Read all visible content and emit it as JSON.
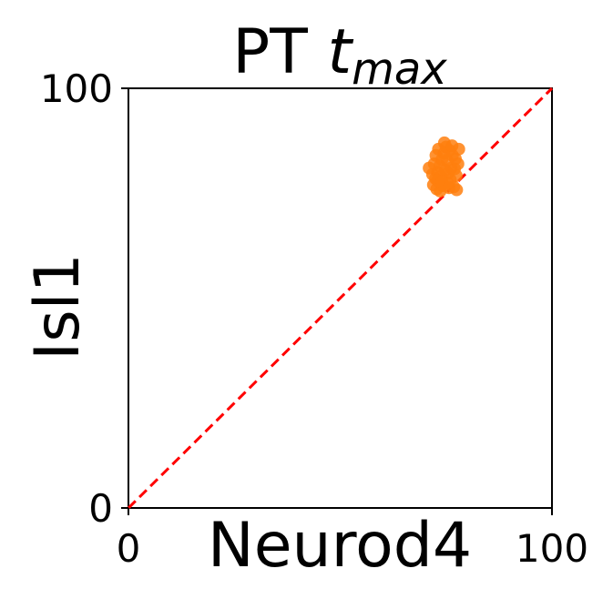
{
  "chart_data": {
    "type": "scatter",
    "title": "PT t_max",
    "title_parts": {
      "plain": "PT ",
      "math_base": "t",
      "math_sub": "max"
    },
    "xlabel": "Neurod4",
    "ylabel": "Isl1",
    "xlim": [
      0,
      100
    ],
    "ylim": [
      0,
      100
    ],
    "x_ticks": [
      "0",
      "100"
    ],
    "y_ticks": [
      "0",
      "100"
    ],
    "grid": false,
    "reference_line": {
      "style": "dashed",
      "color": "#ff0000",
      "from": [
        0,
        0
      ],
      "to": [
        100,
        100
      ]
    },
    "series": [
      {
        "color": "#ff7f0e",
        "points": [
          {
            "x": 72.0,
            "y": 77.0
          },
          {
            "x": 72.5,
            "y": 78.5
          },
          {
            "x": 73.0,
            "y": 80.0
          },
          {
            "x": 73.5,
            "y": 81.5
          },
          {
            "x": 74.0,
            "y": 83.0
          },
          {
            "x": 74.5,
            "y": 84.5
          },
          {
            "x": 75.0,
            "y": 86.0
          },
          {
            "x": 72.8,
            "y": 76.0
          },
          {
            "x": 73.6,
            "y": 75.5
          },
          {
            "x": 74.2,
            "y": 76.8
          },
          {
            "x": 75.3,
            "y": 77.5
          },
          {
            "x": 76.0,
            "y": 78.2
          },
          {
            "x": 76.8,
            "y": 76.5
          },
          {
            "x": 77.5,
            "y": 75.8
          },
          {
            "x": 71.8,
            "y": 79.5
          },
          {
            "x": 72.2,
            "y": 82.0
          },
          {
            "x": 72.6,
            "y": 84.0
          },
          {
            "x": 73.2,
            "y": 85.5
          },
          {
            "x": 74.6,
            "y": 87.0
          },
          {
            "x": 75.8,
            "y": 85.2
          },
          {
            "x": 76.5,
            "y": 84.0
          },
          {
            "x": 77.2,
            "y": 83.2
          },
          {
            "x": 76.2,
            "y": 81.0
          },
          {
            "x": 75.5,
            "y": 79.8
          },
          {
            "x": 74.8,
            "y": 80.5
          },
          {
            "x": 73.8,
            "y": 79.0
          },
          {
            "x": 77.0,
            "y": 80.8
          },
          {
            "x": 77.8,
            "y": 82.0
          },
          {
            "x": 75.2,
            "y": 82.8
          },
          {
            "x": 71.0,
            "y": 81.0
          },
          {
            "x": 78.0,
            "y": 85.5
          },
          {
            "x": 73.0,
            "y": 78.0
          },
          {
            "x": 76.4,
            "y": 86.3
          },
          {
            "x": 74.0,
            "y": 77.8
          },
          {
            "x": 75.7,
            "y": 76.3
          },
          {
            "x": 77.4,
            "y": 79.2
          }
        ]
      }
    ]
  }
}
